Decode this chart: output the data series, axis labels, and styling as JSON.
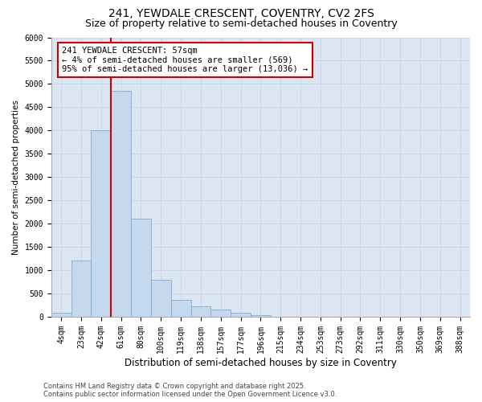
{
  "title": "241, YEWDALE CRESCENT, COVENTRY, CV2 2FS",
  "subtitle": "Size of property relative to semi-detached houses in Coventry",
  "xlabel": "Distribution of semi-detached houses by size in Coventry",
  "ylabel": "Number of semi-detached properties",
  "categories": [
    "4sqm",
    "23sqm",
    "42sqm",
    "61sqm",
    "80sqm",
    "100sqm",
    "119sqm",
    "138sqm",
    "157sqm",
    "177sqm",
    "196sqm",
    "215sqm",
    "234sqm",
    "253sqm",
    "273sqm",
    "292sqm",
    "311sqm",
    "330sqm",
    "350sqm",
    "369sqm",
    "388sqm"
  ],
  "values": [
    80,
    1200,
    4000,
    4850,
    2100,
    800,
    370,
    230,
    150,
    90,
    30,
    5,
    2,
    0,
    0,
    0,
    0,
    0,
    0,
    0,
    0
  ],
  "bar_color": "#c5d8ee",
  "bar_edge_color": "#7aadd4",
  "vline_color": "#cc0000",
  "vline_pos": 2.5,
  "annotation_text_line1": "241 YEWDALE CRESCENT: 57sqm",
  "annotation_text_line2": "← 4% of semi-detached houses are smaller (569)",
  "annotation_text_line3": "95% of semi-detached houses are larger (13,036) →",
  "annotation_box_color": "#cc0000",
  "ylim": [
    0,
    6000
  ],
  "yticks": [
    0,
    500,
    1000,
    1500,
    2000,
    2500,
    3000,
    3500,
    4000,
    4500,
    5000,
    5500,
    6000
  ],
  "grid_color": "#c8d4e8",
  "bg_color": "#dce6f2",
  "footer": "Contains HM Land Registry data © Crown copyright and database right 2025.\nContains public sector information licensed under the Open Government Licence v3.0.",
  "title_fontsize": 10,
  "subtitle_fontsize": 9,
  "xlabel_fontsize": 8.5,
  "ylabel_fontsize": 7.5,
  "tick_fontsize": 7,
  "footer_fontsize": 6,
  "annot_fontsize": 7.5
}
